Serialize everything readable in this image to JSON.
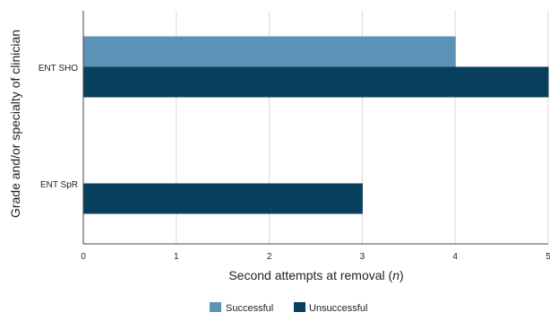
{
  "chart_data": {
    "type": "bar",
    "orientation": "horizontal",
    "categories": [
      "ENT SHO",
      "ENT SpR"
    ],
    "series": [
      {
        "name": "Successful",
        "color": "#5a93b5",
        "values": [
          4,
          0
        ]
      },
      {
        "name": "Unsuccessful",
        "color": "#083f5d",
        "values": [
          5,
          3
        ]
      }
    ],
    "xlabel": "Second attempts at removal (n)",
    "xlabel_main": "Second attempts at removal (",
    "xlabel_italic": "n",
    "xlabel_end": ")",
    "ylabel": "Grade and/or specialty of clinician",
    "xlim": [
      0,
      5
    ],
    "xticks": [
      "0",
      "1",
      "2",
      "3",
      "4",
      "5"
    ],
    "grid": "vertical",
    "legend": "bottom-center"
  }
}
